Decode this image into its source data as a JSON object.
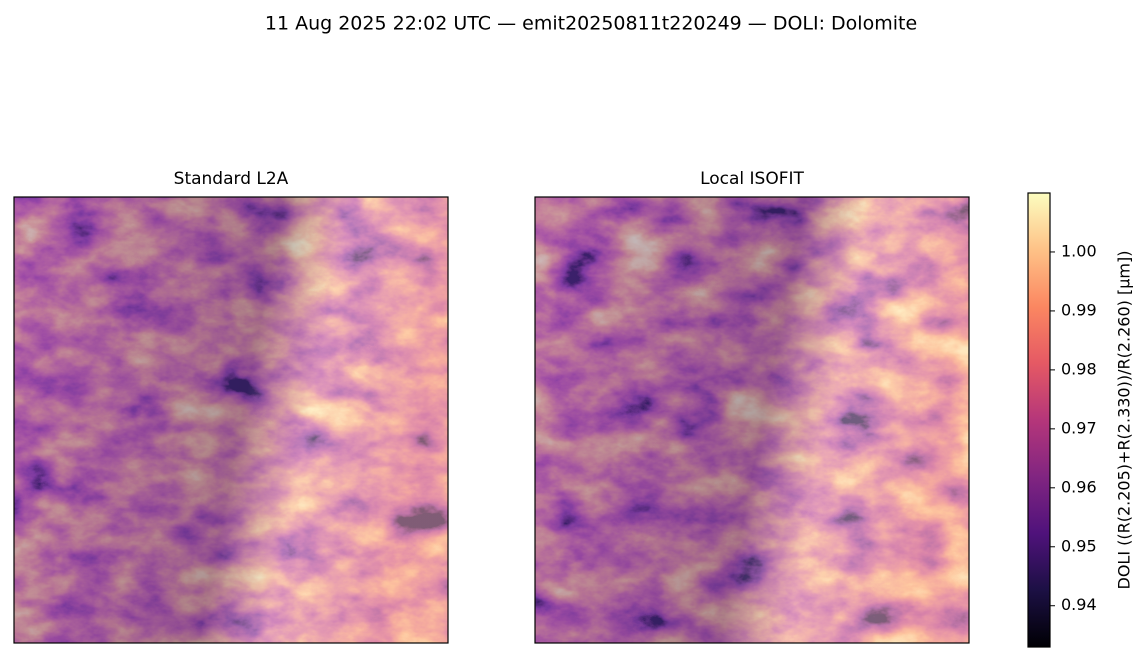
{
  "title": "11 Aug 2025 22:02 UTC — emit20250811t220249 — DOLI: Dolomite",
  "panels": [
    {
      "title": "Standard L2A"
    },
    {
      "title": "Local ISOFIT"
    }
  ],
  "colorbar": {
    "label": "DOLI  ((R(2.205)+R(2.330))/R(2.260)  [µm])",
    "colormap": "magma",
    "lim": [
      0.933,
      1.01
    ],
    "ticks": [
      0.94,
      0.95,
      0.96,
      0.97,
      0.98,
      0.99,
      {
        "value": 1,
        "label": "1.00"
      }
    ]
  }
}
